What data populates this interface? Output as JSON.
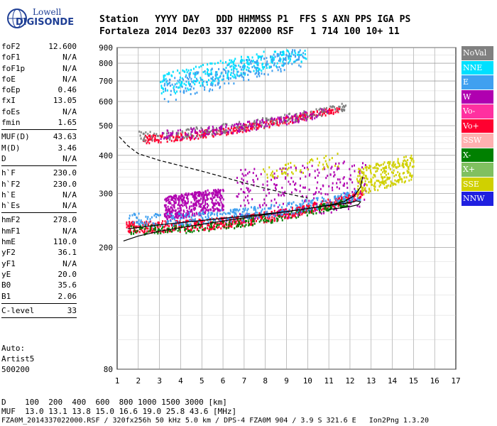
{
  "logo": {
    "line1": "Lowell",
    "line2": "DIGISONDE"
  },
  "header": {
    "row1": "Station   YYYY DAY   DDD HHMMSS P1  FFS S AXN PPS IGA PS",
    "row2": "Fortaleza 2014 Dez03 337 022000 RSF   1 714 100 10+ 11"
  },
  "params": [
    [
      {
        "k": "foF2",
        "v": "12.600"
      },
      {
        "k": "foF1",
        "v": "N/A"
      },
      {
        "k": "foF1p",
        "v": "N/A"
      },
      {
        "k": "foE",
        "v": "N/A"
      },
      {
        "k": "foEp",
        "v": "0.46"
      },
      {
        "k": "fxI",
        "v": "13.05"
      },
      {
        "k": "foEs",
        "v": "N/A"
      },
      {
        "k": "fmin",
        "v": "1.65"
      }
    ],
    [
      {
        "k": "MUF(D)",
        "v": "43.63"
      },
      {
        "k": "M(D)",
        "v": "3.46"
      },
      {
        "k": "D",
        "v": "N/A"
      }
    ],
    [
      {
        "k": "h`F",
        "v": "230.0"
      },
      {
        "k": "h`F2",
        "v": "230.0"
      },
      {
        "k": "h`E",
        "v": "N/A"
      },
      {
        "k": "h`Es",
        "v": "N/A"
      }
    ],
    [
      {
        "k": "hmF2",
        "v": "278.0"
      },
      {
        "k": "hmF1",
        "v": "N/A"
      },
      {
        "k": "hmE",
        "v": "110.0"
      },
      {
        "k": "yF2",
        "v": "36.1"
      },
      {
        "k": "yF1",
        "v": "N/A"
      },
      {
        "k": "yE",
        "v": "20.0"
      },
      {
        "k": "B0",
        "v": "35.6"
      },
      {
        "k": "B1",
        "v": "2.06"
      }
    ],
    [
      {
        "k": "C-level",
        "v": "33"
      }
    ]
  ],
  "auto": {
    "l1": "Auto:",
    "l2": "Artist5",
    "l3": "500200"
  },
  "footer": {
    "d_row": "D    100  200  400  600  800 1000 1500 3000 [km]",
    "muf_row": "MUF  13.0 13.1 13.8 15.0 16.6 19.0 25.8 43.6 [MHz]",
    "info_row": "FZA0M_2014337022000.RSF / 320fx256h 50 kHz 5.0 km / DPS-4 FZA0M 904 / 3.9 S 321.6 E   Ion2Png 1.3.20"
  },
  "legend": [
    {
      "label": "NoVal",
      "color": "#808080"
    },
    {
      "label": "NNE",
      "color": "#00e0ff"
    },
    {
      "label": "E",
      "color": "#40a0f0"
    },
    {
      "label": "W",
      "color": "#b000b0"
    },
    {
      "label": "Vo-",
      "color": "#ff30a0"
    },
    {
      "label": "Vo+",
      "color": "#ff0030"
    },
    {
      "label": "SSW",
      "color": "#ffb0b0"
    },
    {
      "label": "X-",
      "color": "#008000"
    },
    {
      "label": "X+",
      "color": "#80c060"
    },
    {
      "label": "SSE",
      "color": "#d0d000"
    },
    {
      "label": "NNW",
      "color": "#2020e0"
    }
  ],
  "chart_data": {
    "type": "scatter",
    "title": "",
    "xlabel": "",
    "ylabel": "",
    "xlim": [
      1,
      17
    ],
    "ylim": [
      80,
      900
    ],
    "x_ticks": [
      1,
      2,
      3,
      4,
      5,
      6,
      7,
      8,
      9,
      10,
      11,
      12,
      13,
      14,
      15,
      16,
      17
    ],
    "y_ticks": [
      80,
      200,
      300,
      400,
      500,
      600,
      700,
      800,
      900
    ],
    "y_scale": "log",
    "grid": true,
    "legend_position": "right",
    "regions": [
      {
        "name": "o-trace F",
        "color": "#ff0030",
        "x0": 1.4,
        "x1": 12.6,
        "h0": 235,
        "h1": 300,
        "curve": 2.4,
        "spread": 10,
        "n": 700
      },
      {
        "name": "x-trace F",
        "color": "#008000",
        "x0": 1.6,
        "x1": 12.0,
        "h0": 230,
        "h1": 285,
        "curve": 2.2,
        "spread": 8,
        "n": 250
      },
      {
        "name": "west echoes",
        "color": "#b000b0",
        "x0": 3.2,
        "x1": 6.0,
        "h0": 270,
        "h1": 290,
        "curve": 1,
        "spread": 25,
        "n": 450
      },
      {
        "name": "west echoes 2",
        "color": "#b000b0",
        "x0": 6.6,
        "x1": 12.8,
        "h0": 300,
        "h1": 330,
        "curve": 1,
        "spread": 60,
        "n": 250
      },
      {
        "name": "east echoes",
        "color": "#40a0f0",
        "x0": 1.5,
        "x1": 12.5,
        "h0": 248,
        "h1": 300,
        "curve": 2.2,
        "spread": 12,
        "n": 350
      },
      {
        "name": "SSE echoes",
        "color": "#d0d000",
        "x0": 12.3,
        "x1": 15.0,
        "h0": 330,
        "h1": 370,
        "curve": 1,
        "spread": 35,
        "n": 260
      },
      {
        "name": "SSE high",
        "color": "#d0d000",
        "x0": 7.8,
        "x1": 11.5,
        "h0": 350,
        "h1": 390,
        "curve": 1,
        "spread": 20,
        "n": 60
      },
      {
        "name": "second hop",
        "color": "#ff0030",
        "x0": 2.2,
        "x1": 11.5,
        "h0": 455,
        "h1": 570,
        "curve": 1.6,
        "spread": 14,
        "n": 350
      },
      {
        "name": "second hop x",
        "color": "#808080",
        "x0": 2.0,
        "x1": 11.8,
        "h0": 465,
        "h1": 580,
        "curve": 1.6,
        "spread": 18,
        "n": 220
      },
      {
        "name": "second hop w",
        "color": "#b000b0",
        "x0": 3.0,
        "x1": 11.0,
        "h0": 470,
        "h1": 560,
        "curve": 1.6,
        "spread": 18,
        "n": 160
      },
      {
        "name": "high nne",
        "color": "#00e0ff",
        "x0": 3.0,
        "x1": 10.0,
        "h0": 680,
        "h1": 880,
        "curve": 1,
        "spread": 60,
        "n": 300
      },
      {
        "name": "high e",
        "color": "#40a0f0",
        "x0": 3.2,
        "x1": 9.8,
        "h0": 650,
        "h1": 850,
        "curve": 1,
        "spread": 60,
        "n": 220
      }
    ],
    "curves": [
      {
        "name": "profile",
        "style": "solid",
        "points": [
          [
            1.3,
            210
          ],
          [
            2,
            218
          ],
          [
            3,
            226
          ],
          [
            4,
            232
          ],
          [
            5,
            238
          ],
          [
            6,
            244
          ],
          [
            7,
            250
          ],
          [
            8,
            256
          ],
          [
            9,
            262
          ],
          [
            10,
            268
          ],
          [
            11,
            274
          ],
          [
            12,
            280
          ],
          [
            12.3,
            284
          ],
          [
            12.5,
            282
          ],
          [
            12.4,
            276
          ],
          [
            12,
            272
          ],
          [
            11,
            266
          ]
        ]
      },
      {
        "name": "trace",
        "style": "solid",
        "points": [
          [
            1.5,
            230
          ],
          [
            3,
            237
          ],
          [
            5,
            245
          ],
          [
            7,
            253
          ],
          [
            9,
            262
          ],
          [
            10,
            268
          ],
          [
            11,
            275
          ],
          [
            11.7,
            282
          ],
          [
            12.2,
            295
          ],
          [
            12.5,
            315
          ],
          [
            12.6,
            340
          ]
        ]
      },
      {
        "name": "dashed",
        "style": "dashed",
        "points": [
          [
            1.1,
            460
          ],
          [
            1.5,
            430
          ],
          [
            2,
            405
          ],
          [
            3,
            385
          ],
          [
            4,
            370
          ],
          [
            5,
            355
          ],
          [
            6,
            340
          ],
          [
            7,
            325
          ],
          [
            8,
            312
          ],
          [
            9,
            300
          ],
          [
            10,
            290
          ]
        ]
      }
    ]
  }
}
